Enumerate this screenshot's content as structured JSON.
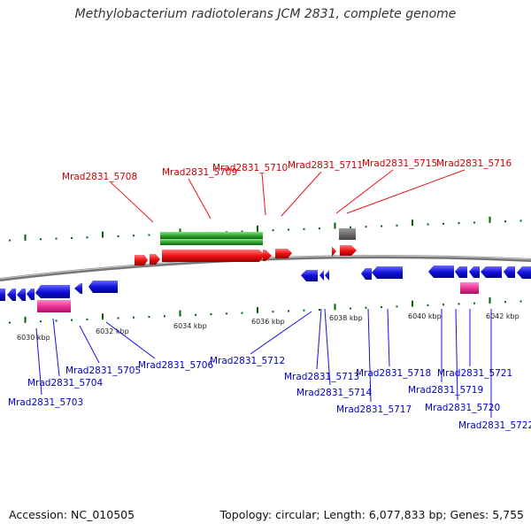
{
  "title": "Methylobacterium radiotolerans JCM 2831, complete genome",
  "footer": {
    "accession": "Accession: NC_010505",
    "summary": "Topology: circular; Length: 6,077,833 bp; Genes: 5,755"
  },
  "colors": {
    "forward_cds": "#ee1111",
    "reverse_cds": "#1111dd",
    "rna": "#33aa33",
    "pseudo": "#666666",
    "repeat": "#ee3399",
    "backbone": "#777777",
    "tick": "#006600"
  },
  "ruler_labels": [
    "6030 kbp",
    "6032 kbp",
    "6034 kbp",
    "6036 kbp",
    "6038 kbp",
    "6040 kbp",
    "6042 kbp"
  ],
  "genes_top": [
    "Mrad2831_5708",
    "Mrad2831_5709",
    "Mrad2831_5710",
    "Mrad2831_5711",
    "Mrad2831_5715",
    "Mrad2831_5716"
  ],
  "genes_bottom": [
    "Mrad2831_5703",
    "Mrad2831_5704",
    "Mrad2831_5705",
    "Mrad2831_5706",
    "Mrad2831_5712",
    "Mrad2831_5713",
    "Mrad2831_5714",
    "Mrad2831_5717",
    "Mrad2831_5718",
    "Mrad2831_5719",
    "Mrad2831_5720",
    "Mrad2831_5721",
    "Mrad2831_5722"
  ]
}
